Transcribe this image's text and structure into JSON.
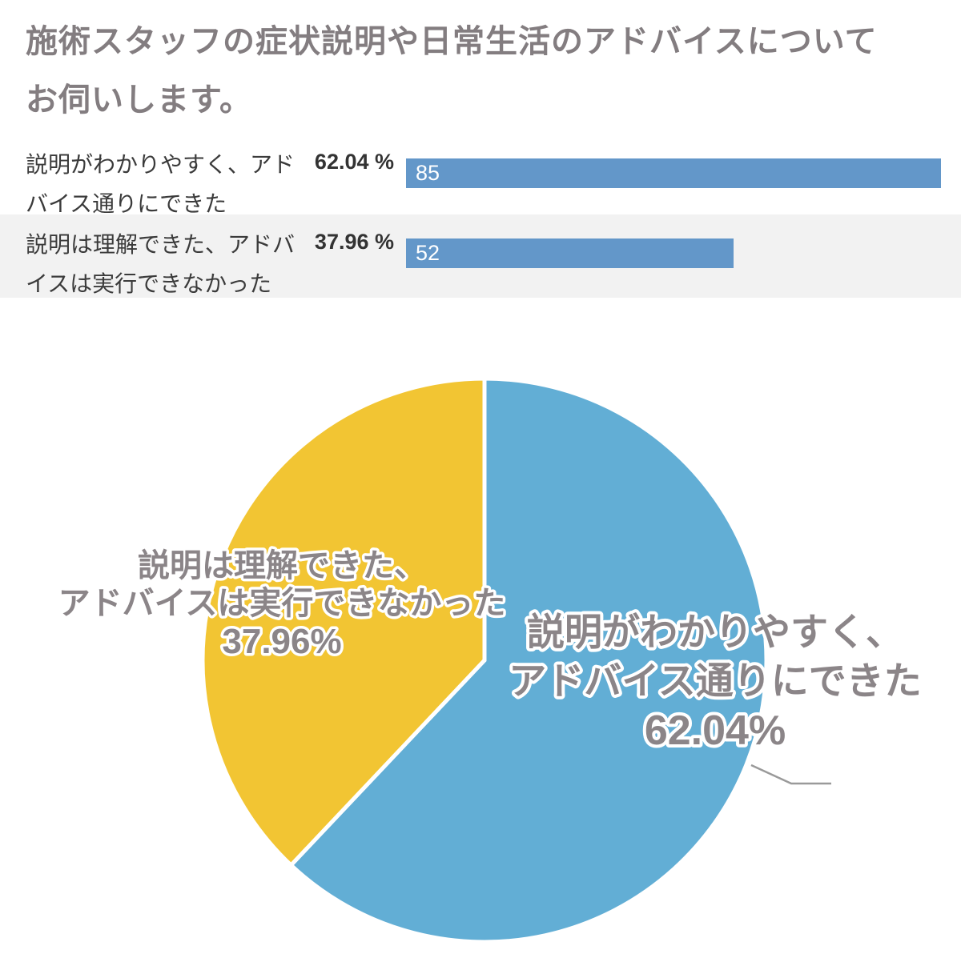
{
  "header": {
    "title_line1": "施術スタッフの症状説明や日常生活のアドバイスについて",
    "title_line2": "お伺いします。",
    "color": "#837d80"
  },
  "chart_data": [
    {
      "type": "bar",
      "orientation": "horizontal",
      "title": "",
      "categories": [
        "説明がわかりやすく、アドバイス通りにできた",
        "説明は理解できた、アドバイスは実行できなかった"
      ],
      "values": [
        85,
        52
      ],
      "value_labels": [
        "85",
        "52"
      ],
      "percent_labels": [
        "62.04 %",
        "37.96 %"
      ],
      "xlim": [
        0,
        85
      ],
      "bar_color": "#6397c9",
      "alt_row_bg": "#f2f2f2",
      "value_text_color": "#ffffff",
      "percent_text_color": "#333333",
      "grid": false
    },
    {
      "type": "pie",
      "title": "",
      "start_angle_deg": 0,
      "direction": "clockwise",
      "legend_position": "none",
      "divider_color": "#ffffff",
      "label_color": "#8b8588",
      "label_outline_color": "#ffffff",
      "leader_line_color": "#9a9a9a",
      "slices": [
        {
          "name": "説明がわかりやすく、アドバイス通りにできた",
          "value": 62.04,
          "color": "#62aed5",
          "label_lines": [
            "説明がわかりやすく、",
            "アドバイス通りにできた",
            "62.04%"
          ]
        },
        {
          "name": "説明は理解できた、アドバイスは実行できなかった",
          "value": 37.96,
          "color": "#f2c533",
          "label_lines": [
            "説明は理解できた、",
            "アドバイスは実行できなかった",
            "37.96%"
          ]
        }
      ]
    }
  ]
}
